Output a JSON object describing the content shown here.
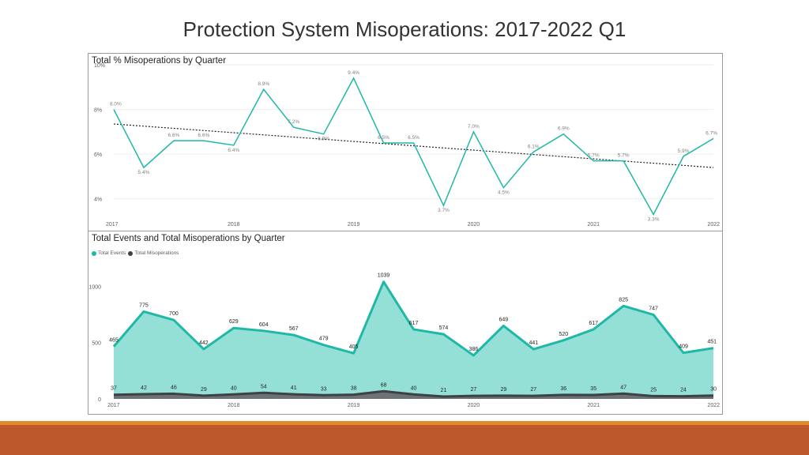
{
  "slide": {
    "title": "Protection System Misoperations:  2017-2022 Q1"
  },
  "colors": {
    "teal": "#1fb8a6",
    "teal_fill": "#94e0d6",
    "dark": "#3c4144",
    "dark_fill": "#6d7375",
    "band_orange": "#e5892d",
    "band_rust": "#bd582c"
  },
  "chart_data": [
    {
      "type": "line",
      "title": "Total % Misoperations by Quarter",
      "x_tick_labels": [
        "2017",
        "2018",
        "2019",
        "2020",
        "2021",
        "2022"
      ],
      "y_tick_labels": [
        "4%",
        "6%",
        "8%",
        "10%"
      ],
      "ylim": [
        3,
        10
      ],
      "grid": true,
      "trendline": {
        "style": "dotted",
        "start": 7.35,
        "end": 5.4
      },
      "series": [
        {
          "values": [
            8.0,
            5.4,
            6.6,
            6.6,
            6.4,
            8.9,
            7.2,
            6.9,
            9.4,
            6.5,
            6.5,
            3.7,
            7.0,
            4.5,
            6.1,
            6.9,
            5.7,
            5.7,
            3.3,
            5.9,
            6.7
          ],
          "labels": [
            "8.0%",
            "5.4%",
            "6.6%",
            "6.6%",
            "6.4%",
            "8.9%",
            "7.2%",
            "6.9%",
            "9.4%",
            "6.5%",
            "6.5%",
            "3.7%",
            "7.0%",
            "4.5%",
            "6.1%",
            "6.9%",
            "5.7%",
            "5.7%",
            "3.3%",
            "5.9%",
            "6.7%"
          ]
        }
      ]
    },
    {
      "type": "area",
      "title": "Total Events and Total Misoperations by Quarter",
      "x_tick_labels": [
        "2017",
        "2018",
        "2019",
        "2020",
        "2021",
        "2022"
      ],
      "y_tick_labels": [
        "0",
        "500",
        "1000"
      ],
      "ylim": [
        0,
        1150
      ],
      "legend_position": "top-left",
      "series": [
        {
          "name": "Total Events",
          "values": [
            465,
            775,
            700,
            442,
            629,
            604,
            567,
            479,
            405,
            1039,
            617,
            574,
            386,
            649,
            441,
            520,
            617,
            825,
            747,
            409,
            451
          ]
        },
        {
          "name": "Total Misoperations",
          "values": [
            37,
            42,
            46,
            29,
            40,
            54,
            41,
            33,
            38,
            68,
            40,
            21,
            27,
            29,
            27,
            36,
            35,
            47,
            25,
            24,
            30
          ]
        }
      ]
    }
  ]
}
